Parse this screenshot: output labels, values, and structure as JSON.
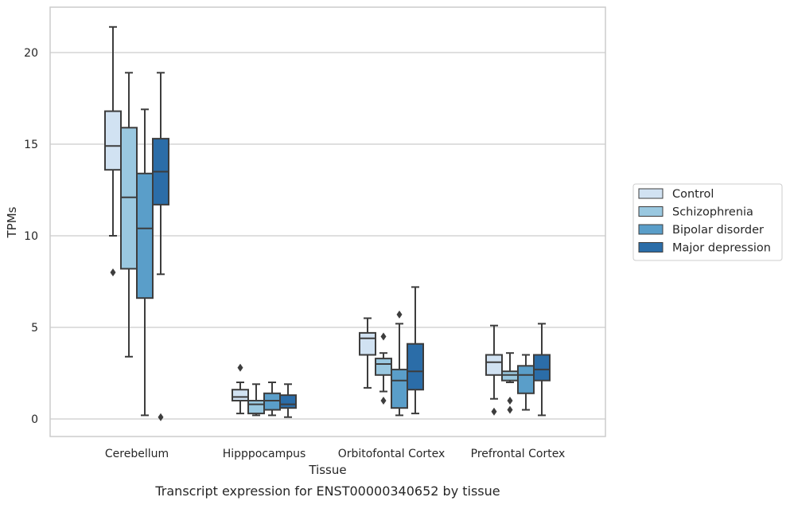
{
  "chart_data": {
    "type": "box",
    "title": "",
    "caption": "Transcript expression for ENST00000340652 by tissue",
    "xlabel": "Tissue",
    "ylabel": "TPMs",
    "ylim": [
      -0.9,
      22.5
    ],
    "yticks": [
      "0",
      "5",
      "10",
      "15",
      "20"
    ],
    "ytick_values": [
      0,
      5,
      10,
      15,
      20
    ],
    "grid": "horizontal",
    "legend_position": "right",
    "categories": [
      "Cerebellum",
      "Hipppocampus",
      "Orbitofontal Cortex",
      "Prefrontal Cortex"
    ],
    "series": [
      {
        "name": "Control",
        "color": "#d1e2f2",
        "boxes": [
          {
            "whislo": 10.0,
            "q1": 13.6,
            "med": 14.9,
            "q3": 16.8,
            "whishi": 21.4,
            "fliers": [
              8.0
            ]
          },
          {
            "whislo": 0.3,
            "q1": 1.0,
            "med": 1.2,
            "q3": 1.6,
            "whishi": 2.0,
            "fliers": [
              2.8
            ]
          },
          {
            "whislo": 1.7,
            "q1": 3.5,
            "med": 4.4,
            "q3": 4.7,
            "whishi": 5.5,
            "fliers": []
          },
          {
            "whislo": 1.1,
            "q1": 2.4,
            "med": 3.1,
            "q3": 3.5,
            "whishi": 5.1,
            "fliers": [
              0.4
            ]
          }
        ]
      },
      {
        "name": "Schizophrenia",
        "color": "#9ac8e0",
        "boxes": [
          {
            "whislo": 3.4,
            "q1": 8.2,
            "med": 12.1,
            "q3": 15.9,
            "whishi": 18.9,
            "fliers": []
          },
          {
            "whislo": 0.2,
            "q1": 0.3,
            "med": 0.8,
            "q3": 1.0,
            "whishi": 1.9,
            "fliers": []
          },
          {
            "whislo": 1.5,
            "q1": 2.4,
            "med": 3.0,
            "q3": 3.3,
            "whishi": 3.6,
            "fliers": [
              4.5,
              1.0
            ]
          },
          {
            "whislo": 2.0,
            "q1": 2.1,
            "med": 2.4,
            "q3": 2.6,
            "whishi": 3.6,
            "fliers": [
              1.0,
              0.5
            ]
          }
        ]
      },
      {
        "name": "Bipolar disorder",
        "color": "#5a9ec9",
        "boxes": [
          {
            "whislo": 0.2,
            "q1": 6.6,
            "med": 10.4,
            "q3": 13.4,
            "whishi": 16.9,
            "fliers": []
          },
          {
            "whislo": 0.2,
            "q1": 0.5,
            "med": 1.0,
            "q3": 1.4,
            "whishi": 2.0,
            "fliers": []
          },
          {
            "whislo": 0.2,
            "q1": 0.6,
            "med": 2.1,
            "q3": 2.7,
            "whishi": 5.2,
            "fliers": [
              5.7
            ]
          },
          {
            "whislo": 0.5,
            "q1": 1.4,
            "med": 2.4,
            "q3": 2.9,
            "whishi": 3.5,
            "fliers": []
          }
        ]
      },
      {
        "name": "Major depression",
        "color": "#2b6da8",
        "boxes": [
          {
            "whislo": 7.9,
            "q1": 11.7,
            "med": 13.5,
            "q3": 15.3,
            "whishi": 18.9,
            "fliers": [
              0.1
            ]
          },
          {
            "whislo": 0.1,
            "q1": 0.6,
            "med": 0.8,
            "q3": 1.3,
            "whishi": 1.9,
            "fliers": []
          },
          {
            "whislo": 0.3,
            "q1": 1.6,
            "med": 2.6,
            "q3": 4.1,
            "whishi": 7.2,
            "fliers": []
          },
          {
            "whislo": 0.2,
            "q1": 2.1,
            "med": 2.7,
            "q3": 3.5,
            "whishi": 5.2,
            "fliers": []
          }
        ]
      }
    ]
  }
}
